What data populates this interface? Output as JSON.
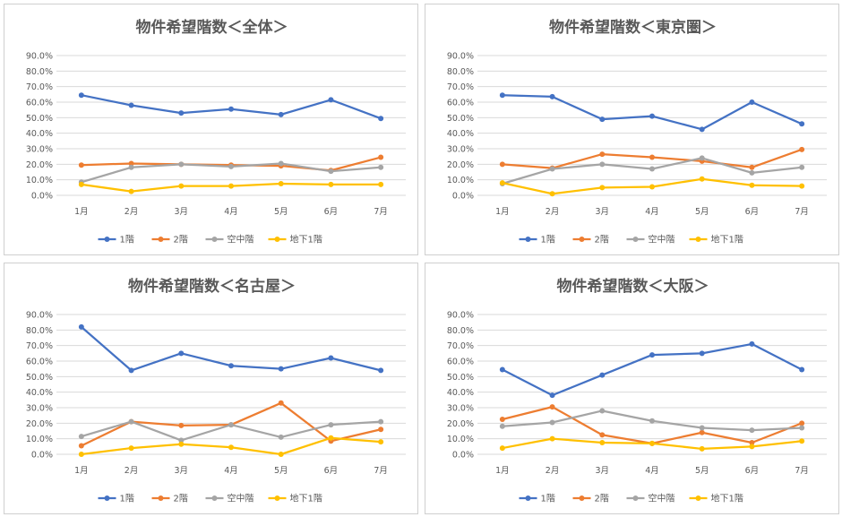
{
  "chart_data": [
    {
      "type": "line",
      "title": "物件希望階数＜全体＞",
      "categories": [
        "1月",
        "2月",
        "3月",
        "4月",
        "5月",
        "6月",
        "7月"
      ],
      "y_ticks": [
        "0.0%",
        "10.0%",
        "20.0%",
        "30.0%",
        "40.0%",
        "50.0%",
        "60.0%",
        "70.0%",
        "80.0%",
        "90.0%"
      ],
      "ylim": [
        0,
        90
      ],
      "legend_position": "bottom",
      "series": [
        {
          "name": "1階",
          "color": "#4472C4",
          "values": [
            64.5,
            58,
            53,
            55.5,
            52,
            61.5,
            49.5
          ]
        },
        {
          "name": "2階",
          "color": "#ED7D31",
          "values": [
            19.5,
            20.5,
            20,
            19.5,
            19,
            16,
            24.5
          ]
        },
        {
          "name": "空中階",
          "color": "#A5A5A5",
          "values": [
            8.5,
            18,
            20,
            18.5,
            20.5,
            15.5,
            18
          ]
        },
        {
          "name": "地下1階",
          "color": "#FFC000",
          "values": [
            7,
            2.5,
            6,
            6,
            7.5,
            7,
            7
          ]
        }
      ]
    },
    {
      "type": "line",
      "title": "物件希望階数＜東京圏＞",
      "categories": [
        "1月",
        "2月",
        "3月",
        "4月",
        "5月",
        "6月",
        "7月"
      ],
      "y_ticks": [
        "0.0%",
        "10.0%",
        "20.0%",
        "30.0%",
        "40.0%",
        "50.0%",
        "60.0%",
        "70.0%",
        "80.0%",
        "90.0%"
      ],
      "ylim": [
        0,
        90
      ],
      "legend_position": "bottom",
      "series": [
        {
          "name": "1階",
          "color": "#4472C4",
          "values": [
            64.5,
            63.5,
            49,
            51,
            42.5,
            60,
            46
          ]
        },
        {
          "name": "2階",
          "color": "#ED7D31",
          "values": [
            20,
            17.5,
            26.5,
            24.5,
            22,
            18,
            29.5
          ]
        },
        {
          "name": "空中階",
          "color": "#A5A5A5",
          "values": [
            7.5,
            17,
            20,
            17,
            24,
            14.5,
            18
          ]
        },
        {
          "name": "地下1階",
          "color": "#FFC000",
          "values": [
            8,
            1,
            5,
            5.5,
            10.5,
            6.5,
            6
          ]
        }
      ]
    },
    {
      "type": "line",
      "title": "物件希望階数＜名古屋＞",
      "categories": [
        "1月",
        "2月",
        "3月",
        "4月",
        "5月",
        "6月",
        "7月"
      ],
      "y_ticks": [
        "0.0%",
        "10.0%",
        "20.0%",
        "30.0%",
        "40.0%",
        "50.0%",
        "60.0%",
        "70.0%",
        "80.0%",
        "90.0%"
      ],
      "ylim": [
        0,
        90
      ],
      "legend_position": "bottom",
      "series": [
        {
          "name": "1階",
          "color": "#4472C4",
          "values": [
            82,
            54,
            65,
            57,
            55,
            62,
            54
          ]
        },
        {
          "name": "2階",
          "color": "#ED7D31",
          "values": [
            5.5,
            21,
            18.5,
            19,
            33,
            8.5,
            16
          ]
        },
        {
          "name": "空中階",
          "color": "#A5A5A5",
          "values": [
            11.5,
            21,
            9,
            19,
            11,
            19,
            21
          ]
        },
        {
          "name": "地下1階",
          "color": "#FFC000",
          "values": [
            0,
            4,
            6.5,
            4.5,
            0,
            10.5,
            8
          ]
        }
      ]
    },
    {
      "type": "line",
      "title": "物件希望階数＜大阪＞",
      "categories": [
        "1月",
        "2月",
        "3月",
        "4月",
        "5月",
        "6月",
        "7月"
      ],
      "y_ticks": [
        "0.0%",
        "10.0%",
        "20.0%",
        "30.0%",
        "40.0%",
        "50.0%",
        "60.0%",
        "70.0%",
        "80.0%",
        "90.0%"
      ],
      "ylim": [
        0,
        90
      ],
      "legend_position": "bottom",
      "series": [
        {
          "name": "1階",
          "color": "#4472C4",
          "values": [
            54.5,
            38,
            51,
            64,
            65,
            71,
            54.5
          ]
        },
        {
          "name": "2階",
          "color": "#ED7D31",
          "values": [
            22.5,
            30.5,
            12.5,
            7,
            14,
            7.5,
            20
          ]
        },
        {
          "name": "空中階",
          "color": "#A5A5A5",
          "values": [
            18,
            20.5,
            28,
            21.5,
            17,
            15.5,
            17
          ]
        },
        {
          "name": "地下1階",
          "color": "#FFC000",
          "values": [
            4,
            10,
            7.5,
            7,
            3.5,
            5,
            8.5
          ]
        }
      ]
    }
  ]
}
